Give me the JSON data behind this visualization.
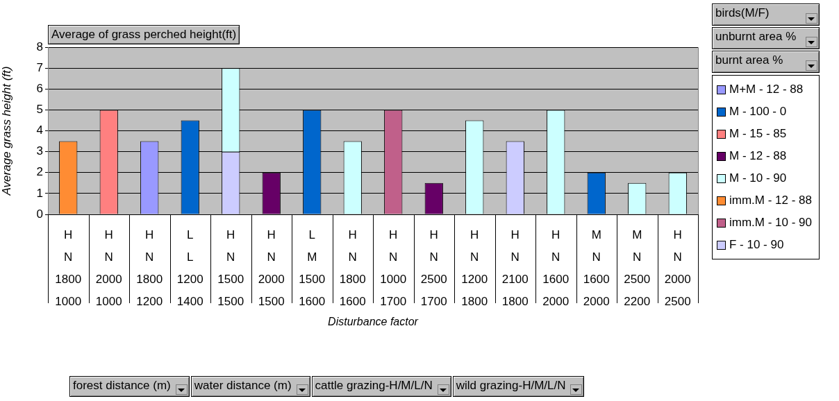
{
  "chart_data": {
    "type": "bar",
    "stacked": true,
    "title": "Average of grass perched height(ft)",
    "xlabel": "Disturbance factor",
    "ylabel": "Average grass height (ft)",
    "legend_title": "birds(M/F)\nunburnt area %\nburnt area %",
    "annotations": [
      "forest distance (m)",
      "water distance (m)",
      "cattle grazing-H/M/L/N",
      "wild grazing-H/M/L/N"
    ],
    "categories": [
      "H\nN\n1800\n1000",
      "H\nN\n2000\n1000",
      "H\nN\n1800\n1200",
      "L\nL\n1200\n1400",
      "H\nN\n1500\n1500",
      "H\nN\n2000\n1500",
      "L\nM\n1500\n1600",
      "H\nN\n1800\n1600",
      "H\nN\n1000\n1700",
      "H\nN\n2500\n1700",
      "H\nN\n1200\n1800",
      "H\nN\n2100\n1800",
      "H\nN\n1600\n2000",
      "M\nN\n1600\n2000",
      "M\nN\n2500\n2200",
      "H\nN\n2000\n2500"
    ],
    "series": [
      {
        "name": "F - 10 - 90",
        "color": "#ccccff",
        "values": [
          null,
          null,
          null,
          null,
          3,
          null,
          null,
          null,
          null,
          null,
          null,
          3.5,
          null,
          null,
          null,
          null
        ]
      },
      {
        "name": "imm.M - 10 - 90",
        "color": "#c0608a",
        "values": [
          null,
          null,
          null,
          null,
          null,
          null,
          null,
          null,
          5,
          null,
          null,
          null,
          null,
          null,
          null,
          null
        ]
      },
      {
        "name": "imm.M - 12 - 88",
        "color": "#ff8c33",
        "values": [
          3.5,
          null,
          null,
          null,
          null,
          null,
          null,
          null,
          null,
          null,
          null,
          null,
          null,
          null,
          null,
          null
        ]
      },
      {
        "name": "M - 10 - 90",
        "color": "#ccffff",
        "values": [
          null,
          null,
          null,
          null,
          4,
          null,
          null,
          3.5,
          null,
          null,
          4.5,
          null,
          5,
          null,
          1.5,
          2
        ]
      },
      {
        "name": "M - 12 - 88",
        "color": "#660066",
        "values": [
          null,
          null,
          null,
          null,
          null,
          2,
          null,
          null,
          null,
          1.5,
          null,
          null,
          null,
          null,
          null,
          null
        ]
      },
      {
        "name": "M - 15 - 85",
        "color": "#ff8080",
        "values": [
          null,
          5,
          null,
          null,
          null,
          null,
          null,
          null,
          null,
          null,
          null,
          null,
          null,
          null,
          null,
          null
        ]
      },
      {
        "name": "M - 100 - 0",
        "color": "#0066cc",
        "values": [
          null,
          null,
          null,
          4.5,
          null,
          null,
          5,
          null,
          null,
          null,
          null,
          null,
          null,
          2,
          null,
          null
        ]
      },
      {
        "name": "M+M - 12 - 88",
        "color": "#9999ff",
        "values": [
          null,
          null,
          3.5,
          null,
          null,
          null,
          null,
          null,
          null,
          null,
          null,
          null,
          null,
          null,
          null,
          null
        ]
      }
    ],
    "ylim": [
      0,
      8
    ],
    "yticks": [
      0,
      1,
      2,
      3,
      4,
      5,
      6,
      7,
      8
    ],
    "grid": "y",
    "legend": "right"
  }
}
